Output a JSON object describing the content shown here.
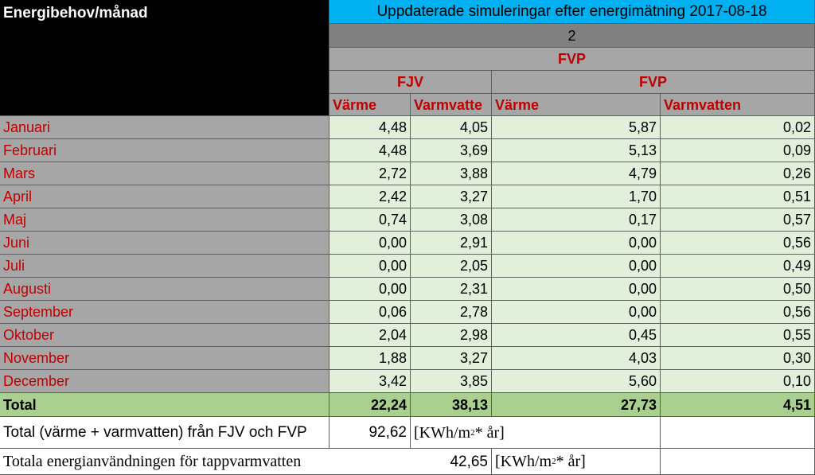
{
  "header": {
    "title": "Energibehov/månad",
    "update_title": "Uppdaterade simuleringar efter energimätning 2017-08-18",
    "scenario": "2",
    "group": "FVP",
    "sub_fjv": "FJV",
    "sub_fvp": "FVP",
    "columns": [
      "Värme",
      "Varmvatte",
      "Värme",
      "Varmvatten"
    ]
  },
  "rows": [
    {
      "month": "Januari",
      "vals": [
        "4,48",
        "4,05",
        "5,87",
        "0,02"
      ]
    },
    {
      "month": "Februari",
      "vals": [
        "4,48",
        "3,69",
        "5,13",
        "0,09"
      ]
    },
    {
      "month": "Mars",
      "vals": [
        "2,72",
        "3,88",
        "4,79",
        "0,26"
      ]
    },
    {
      "month": "April",
      "vals": [
        "2,42",
        "3,27",
        "1,70",
        "0,51"
      ]
    },
    {
      "month": "Maj",
      "vals": [
        "0,74",
        "3,08",
        "0,17",
        "0,57"
      ]
    },
    {
      "month": "Juni",
      "vals": [
        "0,00",
        "2,91",
        "0,00",
        "0,56"
      ]
    },
    {
      "month": "Juli",
      "vals": [
        "0,00",
        "2,05",
        "0,00",
        "0,49"
      ]
    },
    {
      "month": "Augusti",
      "vals": [
        "0,00",
        "2,31",
        "0,00",
        "0,50"
      ]
    },
    {
      "month": "September",
      "vals": [
        "0,06",
        "2,78",
        "0,00",
        "0,56"
      ]
    },
    {
      "month": "Oktober",
      "vals": [
        "2,04",
        "2,98",
        "0,45",
        "0,55"
      ]
    },
    {
      "month": "November",
      "vals": [
        "1,88",
        "3,27",
        "4,03",
        "0,30"
      ]
    },
    {
      "month": "December",
      "vals": [
        "3,42",
        "3,85",
        "5,60",
        "0,10"
      ]
    }
  ],
  "total": {
    "label": "Total",
    "vals": [
      "22,24",
      "38,13",
      "27,73",
      "4,51"
    ]
  },
  "summary1": {
    "label": "Total (värme + varmvatten) från FJV och FVP",
    "value": "92,62",
    "unit_pre": "[KWh/m",
    "unit_sup": "2",
    "unit_post": " * år]"
  },
  "summary2": {
    "label": "Totala energianvändningen för tappvarmvatten",
    "value": "42,65",
    "unit_pre": "[KWh/m",
    "unit_sup": "2",
    "unit_post": " * år]"
  },
  "colors": {
    "header_blue": "#00b0f0",
    "month_red": "#c00000",
    "total_green": "#a9d08e",
    "data_green": "#e2efda",
    "label_grey": "#a6a6a6"
  }
}
